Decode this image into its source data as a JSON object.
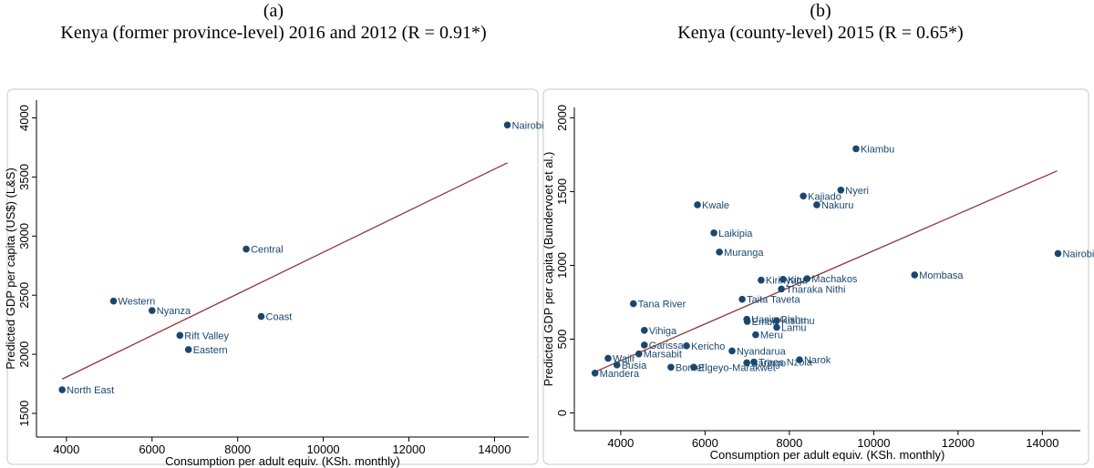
{
  "chart_data": [
    {
      "type": "scatter",
      "panel_label": "(a)",
      "title": "Kenya (former province-level) 2016 and 2012 (R = 0.91*)",
      "x_label": "Consumption per adult equiv. (KSh. monthly)",
      "y_label": "Predicted GDP per capita (US$) (L&S)",
      "xlim": [
        3300,
        14800
      ],
      "ylim": [
        1300,
        4150
      ],
      "xticks": [
        4000,
        6000,
        8000,
        10000,
        12000,
        14000
      ],
      "yticks": [
        1500,
        2000,
        2500,
        3000,
        3500,
        4000
      ],
      "grid": false,
      "points": {
        "color": "#1a476f",
        "labels": [
          "Nairobi",
          "Central",
          "Western",
          "Nyanza",
          "Coast",
          "Rift Valley",
          "Eastern",
          "North East"
        ],
        "x": [
          14300,
          8200,
          5100,
          6000,
          8550,
          6650,
          6850,
          3900
        ],
        "y": [
          3940,
          2890,
          2450,
          2370,
          2320,
          2160,
          2040,
          1700
        ]
      },
      "fit_line": {
        "color": "#90353b",
        "x": [
          3900,
          14300
        ],
        "y": [
          1790,
          3620
        ]
      }
    },
    {
      "type": "scatter",
      "panel_label": "(b)",
      "title": "Kenya (county-level) 2015 (R = 0.65*)",
      "x_label": "Consumption per adult equiv. (KSh. monthly)",
      "y_label": "Predicted GDP per capita (Bundervoet et al.)",
      "xlim": [
        2900,
        14900
      ],
      "ylim": [
        -120,
        2070
      ],
      "xticks": [
        4000,
        6000,
        8000,
        10000,
        12000,
        14000
      ],
      "yticks": [
        0,
        500,
        1000,
        1500,
        2000
      ],
      "grid": false,
      "points": {
        "color": "#1a476f",
        "labels": [
          "Kiambu",
          "Nyeri",
          "Kajiado",
          "Nakuru",
          "Kwale",
          "Laikipia",
          "Muranga",
          "Nairobi",
          "Mombasa",
          "Machakos",
          "Kitui",
          "Kirinyaga",
          "Tharaka Nithi",
          "Taita Taveta",
          "Tana River",
          "Uasin Gishu",
          "Embu",
          "Kisumu",
          "Lamu",
          "Meru",
          "Vihiga",
          "Narok",
          "Garissa",
          "Kericho",
          "Marsabit",
          "Wajir",
          "Nyandarua",
          "Trans Nzoia",
          "Elgeyo-Marakwet",
          "Mandera",
          "Bomet",
          "Busia",
          "Baringo"
        ],
        "x": [
          9580,
          9220,
          8330,
          8650,
          5820,
          6210,
          6340,
          14370,
          10970,
          8420,
          7850,
          7330,
          7810,
          6880,
          4300,
          6990,
          7000,
          7700,
          7700,
          7200,
          4560,
          8240,
          4560,
          5560,
          4430,
          3700,
          6640,
          7160,
          5730,
          3390,
          5190,
          3910,
          6990
        ],
        "y": [
          1790,
          1510,
          1470,
          1410,
          1410,
          1220,
          1090,
          1080,
          935,
          910,
          905,
          900,
          840,
          770,
          740,
          635,
          620,
          625,
          580,
          530,
          560,
          360,
          460,
          455,
          400,
          370,
          420,
          345,
          310,
          270,
          310,
          325,
          340
        ]
      },
      "fit_line": {
        "color": "#90353b",
        "x": [
          3400,
          14350
        ],
        "y": [
          280,
          1640
        ]
      }
    }
  ]
}
